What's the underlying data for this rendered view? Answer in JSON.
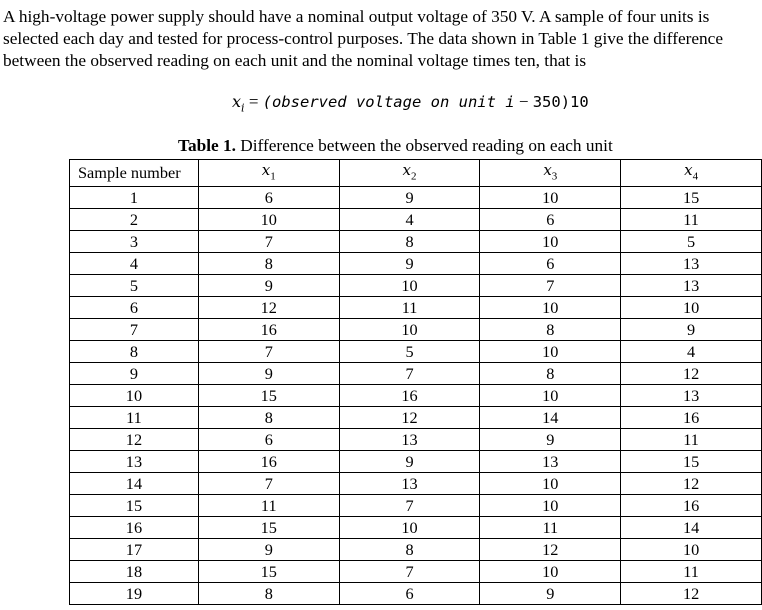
{
  "intro": {
    "line1": "A high-voltage power supply should have a nominal output voltage of 350 V. A sample of four units is",
    "line2": "selected each day and tested for process-control purposes. The data shown in Table 1 give the difference",
    "line3": "between the observed reading on each unit and the nominal voltage times ten, that is"
  },
  "formula": {
    "lhs_var": "x",
    "lhs_sub": "i",
    "equals": " = ",
    "expr": "(observed voltage on unit i",
    "minus": " − ",
    "num": "350)10"
  },
  "caption": {
    "label": "Table 1.",
    "text": " Difference between the observed reading on each unit"
  },
  "table": {
    "columns": [
      {
        "header": "Sample number"
      },
      {
        "var": "x",
        "sub": "1"
      },
      {
        "var": "x",
        "sub": "2"
      },
      {
        "var": "x",
        "sub": "3"
      },
      {
        "var": "x",
        "sub": "4"
      }
    ],
    "rows": [
      [
        "1",
        "6",
        "9",
        "10",
        "15"
      ],
      [
        "2",
        "10",
        "4",
        "6",
        "11"
      ],
      [
        "3",
        "7",
        "8",
        "10",
        "5"
      ],
      [
        "4",
        "8",
        "9",
        "6",
        "13"
      ],
      [
        "5",
        "9",
        "10",
        "7",
        "13"
      ],
      [
        "6",
        "12",
        "11",
        "10",
        "10"
      ],
      [
        "7",
        "16",
        "10",
        "8",
        "9"
      ],
      [
        "8",
        "7",
        "5",
        "10",
        "4"
      ],
      [
        "9",
        "9",
        "7",
        "8",
        "12"
      ],
      [
        "10",
        "15",
        "16",
        "10",
        "13"
      ],
      [
        "11",
        "8",
        "12",
        "14",
        "16"
      ],
      [
        "12",
        "6",
        "13",
        "9",
        "11"
      ],
      [
        "13",
        "16",
        "9",
        "13",
        "15"
      ],
      [
        "14",
        "7",
        "13",
        "10",
        "12"
      ],
      [
        "15",
        "11",
        "7",
        "10",
        "16"
      ],
      [
        "16",
        "15",
        "10",
        "11",
        "14"
      ],
      [
        "17",
        "9",
        "8",
        "12",
        "10"
      ],
      [
        "18",
        "15",
        "7",
        "10",
        "11"
      ],
      [
        "19",
        "8",
        "6",
        "9",
        "12"
      ]
    ]
  }
}
